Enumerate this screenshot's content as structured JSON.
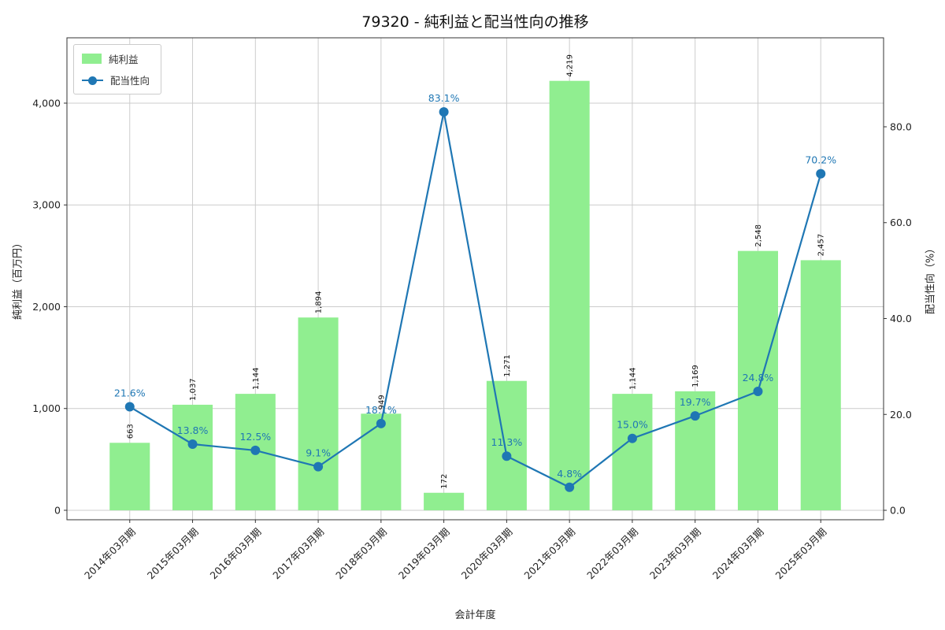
{
  "chart_data": {
    "type": "bar+line",
    "title": "79320 - 純利益と配当性向の推移",
    "xlabel": "会計年度",
    "ylabel_left": "純利益（百万円）",
    "ylabel_right": "配当性向（%）",
    "grid": true,
    "legend_position": "upper-left",
    "categories": [
      "2014年03月期",
      "2015年03月期",
      "2016年03月期",
      "2017年03月期",
      "2018年03月期",
      "2019年03月期",
      "2020年03月期",
      "2021年03月期",
      "2022年03月期",
      "2023年03月期",
      "2024年03月期",
      "2025年03月期"
    ],
    "series": [
      {
        "name": "純利益",
        "type": "bar",
        "axis": "left",
        "color": "#90ee90",
        "values": [
          663,
          1037,
          1144,
          1894,
          949,
          172,
          1271,
          4219,
          1144,
          1169,
          2548,
          2457
        ],
        "labels": [
          "663",
          "1,037",
          "1,144",
          "1,894",
          "949",
          "172",
          "1,271",
          "4,219",
          "1,144",
          "1,169",
          "2,548",
          "2,457"
        ]
      },
      {
        "name": "配当性向",
        "type": "line",
        "axis": "right",
        "color": "#1f77b4",
        "values": [
          21.6,
          13.8,
          12.5,
          9.1,
          18.1,
          83.1,
          11.3,
          4.8,
          15.0,
          19.7,
          24.8,
          70.2
        ],
        "labels": [
          "21.6%",
          "13.8%",
          "12.5%",
          "9.1%",
          "18.1%",
          "83.1%",
          "11.3%",
          "4.8%",
          "15.0%",
          "19.7%",
          "24.8%",
          "70.2%"
        ]
      }
    ],
    "left_axis": {
      "ticks": [
        0,
        1000,
        2000,
        3000,
        4000
      ],
      "tick_labels": [
        "0",
        "1,000",
        "2,000",
        "3,000",
        "4,000"
      ],
      "min": -93,
      "max": 4642
    },
    "right_axis": {
      "ticks": [
        0,
        20,
        40,
        60,
        80
      ],
      "tick_labels": [
        "0.0",
        "20.0",
        "40.0",
        "60.0",
        "80.0"
      ],
      "min": -1.97,
      "max": 98.56
    },
    "colors": {
      "grid": "#cccccc",
      "spine": "#333333",
      "tick": "#222222",
      "bar_label": "#111111",
      "pct_label": "#1f77b4"
    }
  }
}
